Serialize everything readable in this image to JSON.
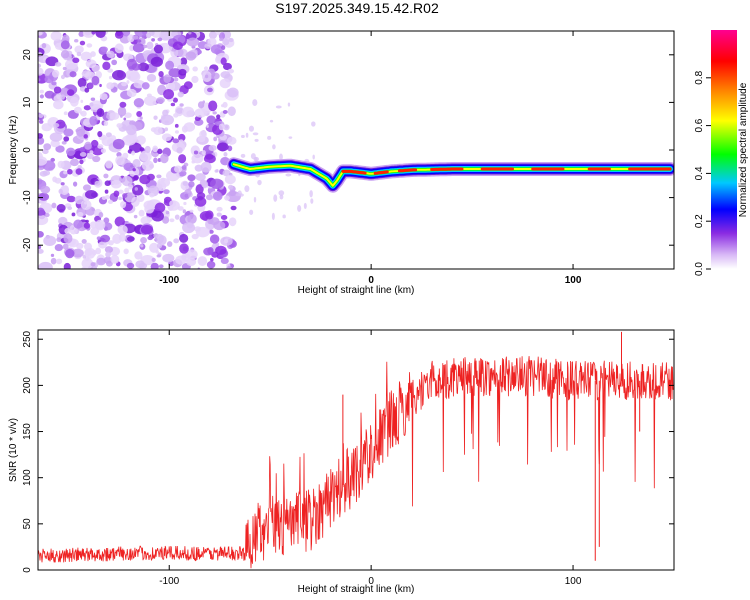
{
  "title": "S197.2025.349.15.42.R02",
  "chart_data": [
    {
      "type": "heatmap",
      "xlabel": "Height of straight line (km)",
      "ylabel": "Frequency (Hz)",
      "xlim": [
        -165,
        150
      ],
      "ylim": [
        -25,
        25
      ],
      "xticks": [
        -100,
        0,
        100
      ],
      "yticks": [
        20,
        10,
        0,
        -10,
        -20
      ],
      "noise_region_x": [
        -165,
        -68
      ],
      "signal_ridge": {
        "x": [
          -68,
          -60,
          -50,
          -40,
          -30,
          -22,
          -19,
          -17,
          -14,
          -10,
          0,
          10,
          20,
          40,
          60,
          80,
          100,
          120,
          148
        ],
        "y": [
          -3,
          -4,
          -3.5,
          -3.3,
          -4,
          -6,
          -7.5,
          -6.5,
          -4.5,
          -4.5,
          -5,
          -4.5,
          -4.2,
          -4,
          -4,
          -4,
          -4,
          -4,
          -4
        ]
      },
      "colorbar": {
        "label": "Normalized spectral amplitude",
        "range": [
          0,
          1
        ],
        "ticks": [
          "0.0",
          "0.2",
          "0.4",
          "0.6",
          "0.8"
        ],
        "colors": [
          "#ffffff",
          "#c9a2f2",
          "#8a2be2",
          "#0000ff",
          "#00c8ff",
          "#00ff00",
          "#ffff00",
          "#ff8000",
          "#ff0000",
          "#ff0090"
        ]
      }
    },
    {
      "type": "line",
      "xlabel": "Height of straight line (km)",
      "ylabel": "SNR (10 * v/v)",
      "xlim": [
        -165,
        150
      ],
      "ylim": [
        0,
        260
      ],
      "xticks": [
        -100,
        0,
        100
      ],
      "yticks": [
        0,
        50,
        100,
        150,
        200,
        250
      ],
      "color": "#ee2222",
      "series_trend": {
        "x": [
          -165,
          -120,
          -80,
          -62,
          -58,
          -50,
          -40,
          -30,
          -20,
          -10,
          0,
          10,
          20,
          30,
          50,
          80,
          100,
          120,
          150
        ],
        "y": [
          15,
          18,
          18,
          18,
          40,
          45,
          50,
          55,
          80,
          100,
          130,
          160,
          185,
          205,
          210,
          210,
          205,
          205,
          205
        ]
      },
      "spikes": [
        {
          "x": -14,
          "y": 190
        },
        {
          "x": 111,
          "y": 10
        },
        {
          "x": 113,
          "y": 25
        },
        {
          "x": 124,
          "y": 258
        },
        {
          "x": 133,
          "y": 150
        }
      ]
    }
  ]
}
